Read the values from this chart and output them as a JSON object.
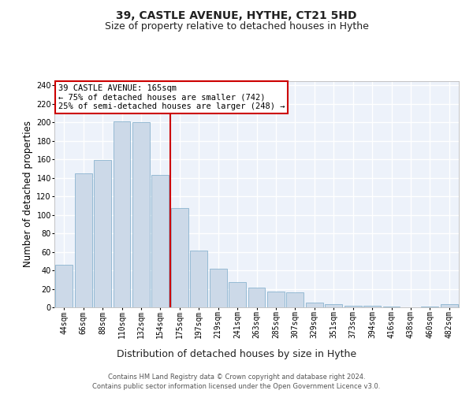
{
  "title": "39, CASTLE AVENUE, HYTHE, CT21 5HD",
  "subtitle": "Size of property relative to detached houses in Hythe",
  "xlabel": "Distribution of detached houses by size in Hythe",
  "ylabel": "Number of detached properties",
  "categories": [
    "44sqm",
    "66sqm",
    "88sqm",
    "110sqm",
    "132sqm",
    "154sqm",
    "175sqm",
    "197sqm",
    "219sqm",
    "241sqm",
    "263sqm",
    "285sqm",
    "307sqm",
    "329sqm",
    "351sqm",
    "373sqm",
    "394sqm",
    "416sqm",
    "438sqm",
    "460sqm",
    "482sqm"
  ],
  "values": [
    46,
    145,
    159,
    201,
    200,
    143,
    107,
    61,
    42,
    27,
    21,
    17,
    16,
    5,
    3,
    2,
    2,
    1,
    0,
    1,
    3
  ],
  "bar_color": "#ccd9e8",
  "bar_edge_color": "#7aaac8",
  "background_color": "#edf2fa",
  "grid_color": "#ffffff",
  "vline_x": 5.5,
  "vline_color": "#cc0000",
  "annotation_text": "39 CASTLE AVENUE: 165sqm\n← 75% of detached houses are smaller (742)\n25% of semi-detached houses are larger (248) →",
  "annotation_box_color": "#cc0000",
  "ylim": [
    0,
    245
  ],
  "yticks": [
    0,
    20,
    40,
    60,
    80,
    100,
    120,
    140,
    160,
    180,
    200,
    220,
    240
  ],
  "footer": "Contains HM Land Registry data © Crown copyright and database right 2024.\nContains public sector information licensed under the Open Government Licence v3.0.",
  "title_fontsize": 10,
  "subtitle_fontsize": 9,
  "xlabel_fontsize": 9,
  "ylabel_fontsize": 8.5,
  "tick_fontsize": 7,
  "annotation_fontsize": 7.5,
  "footer_fontsize": 6
}
